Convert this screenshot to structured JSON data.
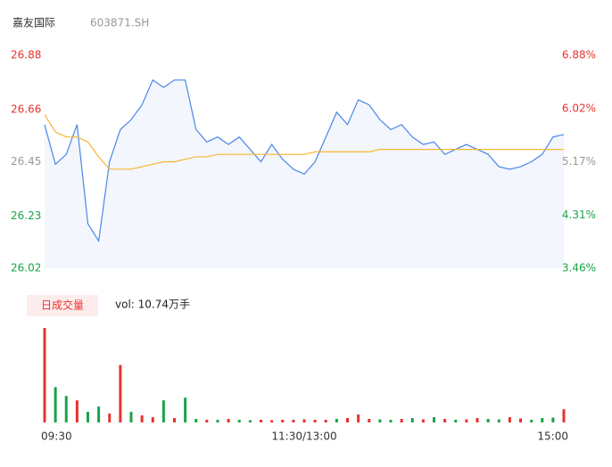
{
  "chart_data": [
    {
      "type": "line",
      "title": "嘉友国际",
      "subtitle": "603871.SH",
      "x": [
        0,
        5,
        10,
        15,
        20,
        25,
        30,
        35,
        40,
        45,
        50,
        55,
        60,
        65,
        70,
        75,
        80,
        85,
        90,
        95,
        100,
        105,
        110,
        115,
        120,
        125,
        130,
        135,
        140,
        145,
        150,
        155,
        160,
        165,
        170,
        175,
        180,
        185,
        190,
        195,
        200,
        205,
        210,
        215,
        220,
        225,
        230,
        235,
        240
      ],
      "xlim": [
        0,
        240
      ],
      "ylim": [
        26.02,
        26.88
      ],
      "yticks": [
        26.02,
        26.23,
        26.45,
        26.66,
        26.88
      ],
      "y2lim": [
        3.46,
        6.88
      ],
      "y2ticks": [
        {
          "value": 3.46,
          "label": "3.46%"
        },
        {
          "value": 4.31,
          "label": "4.31%"
        },
        {
          "value": 5.17,
          "label": "5.17%"
        },
        {
          "value": 6.02,
          "label": "6.02%"
        },
        {
          "value": 6.88,
          "label": "6.88%"
        }
      ],
      "tick_colors": [
        "#1aa34a",
        "#1aa34a",
        "#999999",
        "#e8322f",
        "#e8322f"
      ],
      "fill_color": "#f3f6fc",
      "series": [
        {
          "color": "#4a86e8",
          "values": [
            26.6,
            26.44,
            26.48,
            26.6,
            26.2,
            26.13,
            26.45,
            26.58,
            26.62,
            26.68,
            26.78,
            26.75,
            26.78,
            26.78,
            26.58,
            26.53,
            26.55,
            26.52,
            26.55,
            26.5,
            26.45,
            26.52,
            26.46,
            26.42,
            26.4,
            26.45,
            26.55,
            26.65,
            26.6,
            26.7,
            26.68,
            26.62,
            26.58,
            26.6,
            26.55,
            26.52,
            26.53,
            26.48,
            26.5,
            26.52,
            26.5,
            26.48,
            26.43,
            26.42,
            26.43,
            26.45,
            26.48,
            26.55,
            26.56
          ]
        },
        {
          "color": "#f5b731",
          "values": [
            26.64,
            26.57,
            26.55,
            26.55,
            26.53,
            26.47,
            26.42,
            26.42,
            26.42,
            26.43,
            26.44,
            26.45,
            26.45,
            26.46,
            26.47,
            26.47,
            26.48,
            26.48,
            26.48,
            26.48,
            26.48,
            26.48,
            26.48,
            26.48,
            26.48,
            26.49,
            26.49,
            26.49,
            26.49,
            26.49,
            26.49,
            26.5,
            26.5,
            26.5,
            26.5,
            26.5,
            26.5,
            26.5,
            26.5,
            26.5,
            26.5,
            26.5,
            26.5,
            26.5,
            26.5,
            26.5,
            26.5,
            26.5,
            26.5
          ]
        }
      ]
    },
    {
      "type": "bar",
      "title": "日成交量",
      "annotation": "vol: 10.74万手",
      "x": [
        0,
        5,
        10,
        15,
        20,
        25,
        30,
        35,
        40,
        45,
        50,
        55,
        60,
        65,
        70,
        75,
        80,
        85,
        90,
        95,
        100,
        105,
        110,
        115,
        120,
        125,
        130,
        135,
        140,
        145,
        150,
        155,
        160,
        165,
        170,
        175,
        180,
        185,
        190,
        195,
        200,
        205,
        210,
        215,
        220,
        225,
        230,
        235,
        240
      ],
      "xlim": [
        0,
        240
      ],
      "xticks": [
        {
          "value": 0,
          "label": "09:30"
        },
        {
          "value": 120,
          "label": "11:30/13:00"
        },
        {
          "value": 240,
          "label": "15:00"
        }
      ],
      "ylim": [
        0,
        11000
      ],
      "values": [
        10700,
        4000,
        3000,
        2500,
        1200,
        1800,
        1000,
        6500,
        1200,
        800,
        600,
        2500,
        500,
        2800,
        400,
        300,
        300,
        400,
        300,
        250,
        300,
        250,
        300,
        300,
        350,
        300,
        300,
        400,
        500,
        900,
        400,
        350,
        300,
        400,
        500,
        350,
        600,
        400,
        300,
        350,
        500,
        400,
        350,
        600,
        450,
        300,
        500,
        550,
        1500
      ],
      "colors": [
        "#e8322f",
        "#1aa34a",
        "#1aa34a",
        "#e8322f",
        "#1aa34a",
        "#1aa34a",
        "#e8322f",
        "#e8322f",
        "#1aa34a",
        "#e8322f",
        "#e8322f",
        "#1aa34a",
        "#e8322f",
        "#1aa34a",
        "#1aa34a",
        "#e8322f",
        "#1aa34a",
        "#e8322f",
        "#1aa34a",
        "#1aa34a",
        "#e8322f",
        "#e8322f",
        "#e8322f",
        "#e8322f",
        "#e8322f",
        "#e8322f",
        "#e8322f",
        "#1aa34a",
        "#e8322f",
        "#e8322f",
        "#e8322f",
        "#1aa34a",
        "#1aa34a",
        "#e8322f",
        "#1aa34a",
        "#e8322f",
        "#1aa34a",
        "#e8322f",
        "#1aa34a",
        "#e8322f",
        "#e8322f",
        "#1aa34a",
        "#1aa34a",
        "#e8322f",
        "#e8322f",
        "#1aa34a",
        "#1aa34a",
        "#1aa34a",
        "#e8322f"
      ]
    }
  ]
}
